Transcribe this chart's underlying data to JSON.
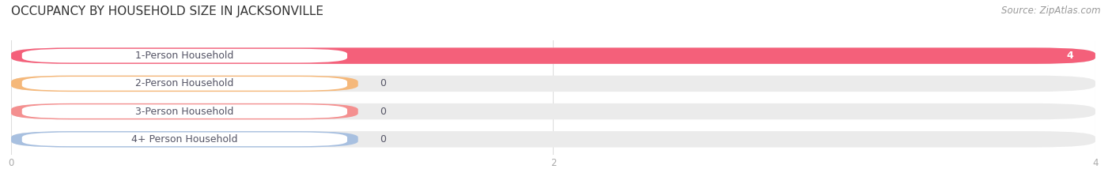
{
  "title": "OCCUPANCY BY HOUSEHOLD SIZE IN JACKSONVILLE",
  "source": "Source: ZipAtlas.com",
  "categories": [
    "1-Person Household",
    "2-Person Household",
    "3-Person Household",
    "4+ Person Household"
  ],
  "values": [
    4,
    0,
    0,
    0
  ],
  "bar_colors": [
    "#f4607a",
    "#f5b87a",
    "#f49090",
    "#a8c0e0"
  ],
  "track_color": "#ebebeb",
  "xlim": [
    0,
    4
  ],
  "xticks": [
    0,
    2,
    4
  ],
  "figsize": [
    14.06,
    2.33
  ],
  "dpi": 100,
  "title_fontsize": 11,
  "source_fontsize": 8.5,
  "label_fontsize": 9,
  "value_fontsize": 9,
  "background_color": "#ffffff",
  "grid_color": "#dddddd",
  "text_color": "#555566",
  "title_color": "#333333",
  "source_color": "#999999",
  "tick_color": "#aaaaaa"
}
